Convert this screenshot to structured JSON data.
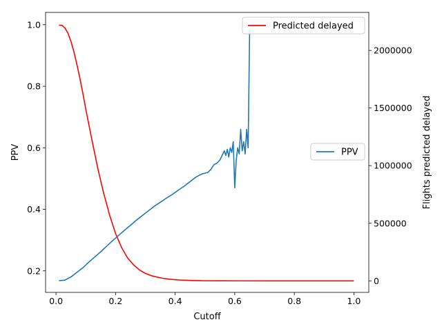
{
  "chart_data": {
    "type": "line",
    "xlabel": "Cutoff",
    "ylabel_left": "PPV",
    "ylabel_right": "Flights predicted delayed",
    "xlim": [
      -0.035,
      1.05
    ],
    "ylim_left": [
      0.13,
      1.04
    ],
    "ylim_right": [
      -100000,
      2330000
    ],
    "xticks": [
      0.0,
      0.2,
      0.4,
      0.6,
      0.8,
      1.0
    ],
    "xtick_labels": [
      "0.0",
      "0.2",
      "0.4",
      "0.6",
      "0.8",
      "1.0"
    ],
    "yticks_left": [
      0.2,
      0.4,
      0.6,
      0.8,
      1.0
    ],
    "ytick_labels_left": [
      "0.2",
      "0.4",
      "0.6",
      "0.8",
      "1.0"
    ],
    "yticks_right": [
      0,
      500000,
      1000000,
      1500000,
      2000000
    ],
    "ytick_labels_right": [
      "0",
      "500000",
      "1000000",
      "1500000",
      "2000000"
    ],
    "grid": false,
    "series": [
      {
        "name": "Predicted delayed",
        "axis": "right",
        "color": "#ff0000",
        "legend_position": "upper-right",
        "x": [
          0.01,
          0.02,
          0.03,
          0.04,
          0.05,
          0.06,
          0.07,
          0.08,
          0.09,
          0.1,
          0.12,
          0.14,
          0.16,
          0.18,
          0.2,
          0.22,
          0.24,
          0.26,
          0.28,
          0.3,
          0.32,
          0.34,
          0.36,
          0.38,
          0.4,
          0.42,
          0.44,
          0.46,
          0.48,
          0.5,
          0.55,
          0.6,
          0.7,
          0.8,
          0.9,
          1.0
        ],
        "y": [
          2220000,
          2218000,
          2195000,
          2150000,
          2080000,
          1990000,
          1880000,
          1760000,
          1630000,
          1490000,
          1230000,
          980000,
          760000,
          570000,
          410000,
          290000,
          200000,
          140000,
          95000,
          65000,
          45000,
          32000,
          22000,
          15000,
          10000,
          7000,
          5000,
          3000,
          2000,
          1000,
          500,
          200,
          50,
          20,
          5,
          0
        ]
      },
      {
        "name": "PPV",
        "axis": "left",
        "color": "#1f77b4",
        "legend_position": "center-right",
        "x": [
          0.01,
          0.03,
          0.05,
          0.07,
          0.09,
          0.11,
          0.13,
          0.15,
          0.17,
          0.19,
          0.21,
          0.23,
          0.25,
          0.27,
          0.29,
          0.31,
          0.33,
          0.35,
          0.37,
          0.39,
          0.41,
          0.43,
          0.45,
          0.47,
          0.49,
          0.51,
          0.52,
          0.53,
          0.54,
          0.55,
          0.56,
          0.565,
          0.57,
          0.575,
          0.58,
          0.585,
          0.59,
          0.595,
          0.6,
          0.605,
          0.61,
          0.615,
          0.62,
          0.625,
          0.63,
          0.635,
          0.64,
          0.645,
          0.65
        ],
        "y": [
          0.168,
          0.17,
          0.18,
          0.195,
          0.21,
          0.228,
          0.245,
          0.262,
          0.28,
          0.298,
          0.315,
          0.332,
          0.348,
          0.365,
          0.38,
          0.395,
          0.41,
          0.423,
          0.436,
          0.448,
          0.462,
          0.475,
          0.49,
          0.505,
          0.515,
          0.52,
          0.53,
          0.545,
          0.55,
          0.56,
          0.58,
          0.59,
          0.575,
          0.595,
          0.57,
          0.6,
          0.585,
          0.62,
          0.47,
          0.56,
          0.6,
          0.58,
          0.66,
          0.59,
          0.62,
          0.58,
          0.66,
          0.6,
          0.985
        ]
      }
    ]
  }
}
